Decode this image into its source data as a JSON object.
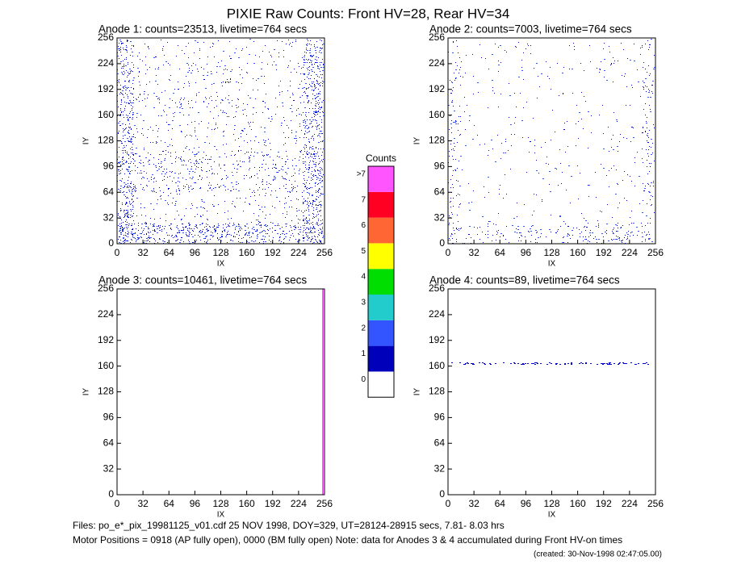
{
  "title": "PIXIE Raw Counts:  Front HV=28, Rear HV=34",
  "chart_data": [
    {
      "type": "image",
      "title": "Anode 1: counts=23513, livetime=764 secs",
      "xlabel": "IX",
      "ylabel": "IY",
      "xlim": [
        0,
        256
      ],
      "ylim": [
        0,
        256
      ],
      "xticks": [
        0,
        32,
        64,
        96,
        128,
        160,
        192,
        224,
        256
      ],
      "yticks": [
        0,
        32,
        64,
        96,
        128,
        160,
        192,
        224,
        256
      ]
    },
    {
      "type": "image",
      "title": "Anode 2: counts=7003, livetime=764 secs",
      "xlabel": "IX",
      "ylabel": "IY",
      "xlim": [
        0,
        256
      ],
      "ylim": [
        0,
        256
      ],
      "xticks": [
        0,
        32,
        64,
        96,
        128,
        160,
        192,
        224,
        256
      ],
      "yticks": [
        0,
        32,
        64,
        96,
        128,
        160,
        192,
        224,
        256
      ]
    },
    {
      "type": "image",
      "title": "Anode 3: counts=10461, livetime=764 secs",
      "xlabel": "IX",
      "ylabel": "IY",
      "xlim": [
        0,
        256
      ],
      "ylim": [
        0,
        256
      ],
      "xticks": [
        0,
        32,
        64,
        96,
        128,
        160,
        192,
        224,
        256
      ],
      "yticks": [
        0,
        32,
        64,
        96,
        128,
        160,
        192,
        224,
        256
      ]
    },
    {
      "type": "image",
      "title": "Anode 4: counts=89, livetime=764 secs",
      "xlabel": "IX",
      "ylabel": "IY",
      "xlim": [
        0,
        256
      ],
      "ylim": [
        0,
        256
      ],
      "xticks": [
        0,
        32,
        64,
        96,
        128,
        160,
        192,
        224,
        256
      ],
      "yticks": [
        0,
        32,
        64,
        96,
        128,
        160,
        192,
        224,
        256
      ]
    }
  ],
  "colorbar": {
    "title": "Counts",
    "labels": [
      "0",
      "1",
      "2",
      "3",
      "4",
      "5",
      "6",
      "7",
      ">7"
    ],
    "colors": [
      "#ffffff",
      "#0000bb",
      "#3355ff",
      "#22cccc",
      "#00dd00",
      "#ffff00",
      "#ff6633",
      "#ff0022",
      "#ff55ff"
    ]
  },
  "footer": [
    "Files: po_e*_pix_19981125_v01.cdf   25 NOV 1998, DOY=329, UT=28124-28915 secs,  7.81- 8.03 hrs",
    "Motor Positions = 0918 (AP fully open), 0000 (BM fully open)    Note: data for Anodes 3 & 4 accumulated during Front HV-on times",
    "(created: 30-Nov-1998 02:47:05.00)"
  ]
}
